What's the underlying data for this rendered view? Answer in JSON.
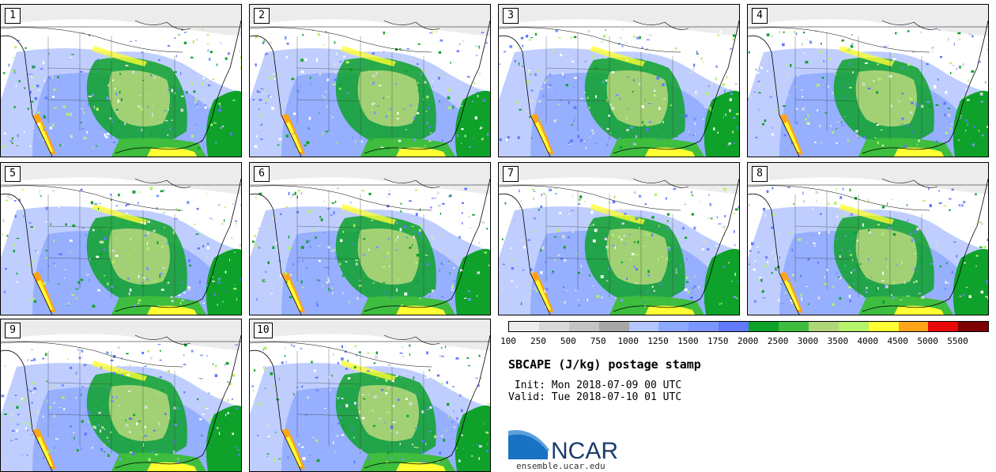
{
  "panels": [
    {
      "label": "1"
    },
    {
      "label": "2"
    },
    {
      "label": "3"
    },
    {
      "label": "4"
    },
    {
      "label": "5"
    },
    {
      "label": "6"
    },
    {
      "label": "7"
    },
    {
      "label": "8"
    },
    {
      "label": "9"
    },
    {
      "label": "10"
    }
  ],
  "colorbar": {
    "colors": [
      "#ececec",
      "#d9d9d9",
      "#c4c4c4",
      "#a6a6a6",
      "#b4c6ff",
      "#8ca8ff",
      "#7b96ff",
      "#6178ff",
      "#0ea22a",
      "#3ebd3e",
      "#b0d67a",
      "#b4f26a",
      "#ffff33",
      "#ffa319",
      "#e80a0a",
      "#7d0000"
    ],
    "labels": [
      "100",
      "250",
      "500",
      "750",
      "1000",
      "1250",
      "1500",
      "1750",
      "2000",
      "2500",
      "3000",
      "3500",
      "4000",
      "4500",
      "5000",
      "5500"
    ]
  },
  "title": "SBCAPE (J/kg) postage stamp",
  "init": " Init: Mon 2018-07-09 00 UTC",
  "valid": "Valid: Tue 2018-07-10 01 UTC",
  "logo_text": "NCAR",
  "site": "ensemble.ucar.edu"
}
